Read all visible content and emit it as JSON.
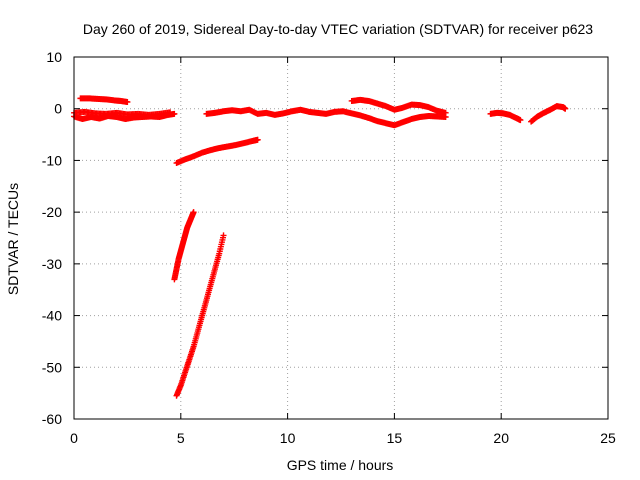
{
  "chart_data": {
    "type": "scatter",
    "title": "Day 260 of 2019, Sidereal Day-to-day VTEC variation (SDTVAR) for receiver p623",
    "xlabel": "GPS time / hours",
    "ylabel": "SDTVAR / TECUs",
    "xlim": [
      0,
      25
    ],
    "ylim": [
      -60,
      10
    ],
    "xticks": [
      0,
      5,
      10,
      15,
      20,
      25
    ],
    "yticks": [
      10,
      0,
      -10,
      -20,
      -30,
      -40,
      -50,
      -60
    ],
    "grid": true,
    "marker": "plus",
    "color": "#ff0000",
    "series": [
      {
        "points": [
          [
            0.3,
            2.0
          ],
          [
            0.7,
            2.0
          ],
          [
            1.1,
            1.9
          ],
          [
            1.5,
            1.8
          ],
          [
            1.9,
            1.6
          ],
          [
            2.2,
            1.5
          ],
          [
            2.5,
            1.3
          ]
        ]
      },
      {
        "points": [
          [
            0.0,
            -1.5
          ],
          [
            0.4,
            -2.0
          ],
          [
            0.8,
            -1.6
          ],
          [
            1.2,
            -1.9
          ],
          [
            1.6,
            -1.4
          ],
          [
            2.0,
            -1.6
          ],
          [
            2.4,
            -2.0
          ],
          [
            2.8,
            -1.7
          ],
          [
            3.2,
            -1.6
          ],
          [
            3.6,
            -1.5
          ],
          [
            4.0,
            -1.6
          ],
          [
            4.4,
            -1.2
          ],
          [
            4.7,
            -1.0
          ]
        ]
      },
      {
        "points": [
          [
            0.0,
            -0.8
          ],
          [
            0.5,
            -0.6
          ],
          [
            1.0,
            -0.9
          ],
          [
            1.5,
            -1.0
          ],
          [
            2.0,
            -0.8
          ],
          [
            2.5,
            -1.1
          ],
          [
            3.0,
            -1.0
          ],
          [
            3.5,
            -1.2
          ],
          [
            4.0,
            -1.0
          ],
          [
            4.5,
            -0.7
          ]
        ]
      },
      {
        "points": [
          [
            4.8,
            -10.5
          ],
          [
            5.2,
            -9.8
          ],
          [
            5.6,
            -9.2
          ],
          [
            6.0,
            -8.5
          ],
          [
            6.4,
            -8.0
          ],
          [
            6.8,
            -7.6
          ],
          [
            7.2,
            -7.3
          ],
          [
            7.6,
            -7.0
          ],
          [
            8.0,
            -6.6
          ],
          [
            8.4,
            -6.2
          ],
          [
            8.6,
            -6.0
          ]
        ]
      },
      {
        "points": [
          [
            4.7,
            -33.0
          ],
          [
            4.8,
            -31.0
          ],
          [
            4.9,
            -29.0
          ],
          [
            5.0,
            -27.5
          ],
          [
            5.1,
            -26.0
          ],
          [
            5.2,
            -24.5
          ],
          [
            5.3,
            -23.0
          ],
          [
            5.4,
            -22.0
          ],
          [
            5.5,
            -21.0
          ],
          [
            5.6,
            -20.0
          ]
        ]
      },
      {
        "points": [
          [
            4.8,
            -55.5
          ],
          [
            5.0,
            -53.5
          ],
          [
            5.2,
            -51.0
          ],
          [
            5.4,
            -48.5
          ],
          [
            5.6,
            -46.0
          ],
          [
            5.8,
            -43.0
          ],
          [
            6.0,
            -40.0
          ],
          [
            6.2,
            -37.0
          ],
          [
            6.4,
            -34.0
          ],
          [
            6.6,
            -31.0
          ],
          [
            6.8,
            -28.0
          ],
          [
            7.0,
            -24.5
          ]
        ]
      },
      {
        "points": [
          [
            6.2,
            -1.0
          ],
          [
            6.6,
            -0.8
          ],
          [
            7.0,
            -0.5
          ],
          [
            7.4,
            -0.3
          ],
          [
            7.8,
            -0.5
          ],
          [
            8.2,
            -0.2
          ],
          [
            8.6,
            -1.0
          ],
          [
            9.0,
            -0.8
          ],
          [
            9.4,
            -1.2
          ],
          [
            9.8,
            -0.9
          ],
          [
            10.2,
            -0.5
          ],
          [
            10.6,
            -0.2
          ],
          [
            11.0,
            -0.6
          ],
          [
            11.4,
            -0.8
          ],
          [
            11.8,
            -1.0
          ],
          [
            12.2,
            -0.6
          ],
          [
            12.6,
            -0.5
          ],
          [
            13.0,
            -0.9
          ],
          [
            13.4,
            -1.3
          ],
          [
            13.8,
            -1.8
          ],
          [
            14.2,
            -2.4
          ],
          [
            14.6,
            -2.8
          ],
          [
            15.0,
            -3.2
          ],
          [
            15.4,
            -2.6
          ],
          [
            15.8,
            -2.0
          ],
          [
            16.2,
            -1.6
          ],
          [
            16.6,
            -1.4
          ],
          [
            17.0,
            -1.5
          ],
          [
            17.4,
            -1.6
          ]
        ]
      },
      {
        "points": [
          [
            13.0,
            1.5
          ],
          [
            13.4,
            1.7
          ],
          [
            13.8,
            1.5
          ],
          [
            14.2,
            1.0
          ],
          [
            14.6,
            0.5
          ],
          [
            15.0,
            -0.2
          ],
          [
            15.4,
            0.2
          ],
          [
            15.8,
            0.8
          ],
          [
            16.2,
            0.7
          ],
          [
            16.6,
            0.3
          ],
          [
            17.0,
            -0.4
          ],
          [
            17.4,
            -0.8
          ]
        ]
      },
      {
        "points": [
          [
            19.5,
            -1.0
          ],
          [
            19.8,
            -0.8
          ],
          [
            20.1,
            -0.9
          ],
          [
            20.4,
            -1.2
          ],
          [
            20.7,
            -1.8
          ],
          [
            20.9,
            -2.2
          ]
        ]
      },
      {
        "points": [
          [
            21.4,
            -2.5
          ],
          [
            21.7,
            -1.5
          ],
          [
            22.0,
            -0.8
          ],
          [
            22.3,
            -0.2
          ],
          [
            22.6,
            0.5
          ],
          [
            22.9,
            0.3
          ],
          [
            23.0,
            0.0
          ]
        ]
      }
    ]
  }
}
